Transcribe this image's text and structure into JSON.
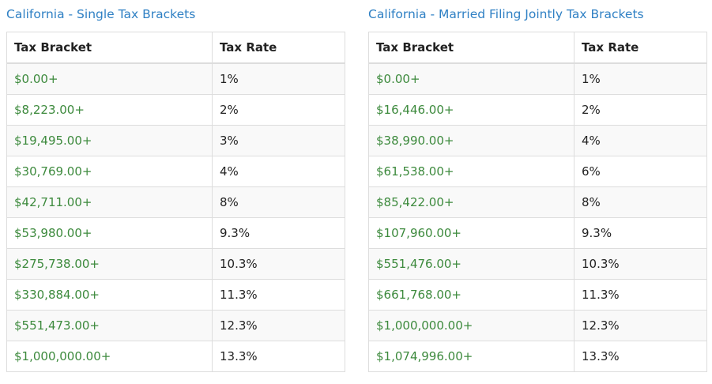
{
  "single": {
    "title": "California - Single Tax Brackets",
    "headers": {
      "bracket": "Tax Bracket",
      "rate": "Tax Rate"
    },
    "rows": [
      {
        "bracket": "$0.00+",
        "rate": "1%"
      },
      {
        "bracket": "$8,223.00+",
        "rate": "2%"
      },
      {
        "bracket": "$19,495.00+",
        "rate": "3%"
      },
      {
        "bracket": "$30,769.00+",
        "rate": "4%"
      },
      {
        "bracket": "$42,711.00+",
        "rate": "8%"
      },
      {
        "bracket": "$53,980.00+",
        "rate": "9.3%"
      },
      {
        "bracket": "$275,738.00+",
        "rate": "10.3%"
      },
      {
        "bracket": "$330,884.00+",
        "rate": "11.3%"
      },
      {
        "bracket": "$551,473.00+",
        "rate": "12.3%"
      },
      {
        "bracket": "$1,000,000.00+",
        "rate": "13.3%"
      }
    ]
  },
  "married": {
    "title": "California - Married Filing Jointly Tax Brackets",
    "headers": {
      "bracket": "Tax Bracket",
      "rate": "Tax Rate"
    },
    "rows": [
      {
        "bracket": "$0.00+",
        "rate": "1%"
      },
      {
        "bracket": "$16,446.00+",
        "rate": "2%"
      },
      {
        "bracket": "$38,990.00+",
        "rate": "4%"
      },
      {
        "bracket": "$61,538.00+",
        "rate": "6%"
      },
      {
        "bracket": "$85,422.00+",
        "rate": "8%"
      },
      {
        "bracket": "$107,960.00+",
        "rate": "9.3%"
      },
      {
        "bracket": "$551,476.00+",
        "rate": "10.3%"
      },
      {
        "bracket": "$661,768.00+",
        "rate": "11.3%"
      },
      {
        "bracket": "$1,000,000.00+",
        "rate": "12.3%"
      },
      {
        "bracket": "$1,074,996.00+",
        "rate": "13.3%"
      }
    ]
  },
  "colors": {
    "title": "#2f80c4",
    "bracket_text": "#3d8a3d",
    "stripe": "#f9f9f9",
    "border": "#dddddd"
  }
}
